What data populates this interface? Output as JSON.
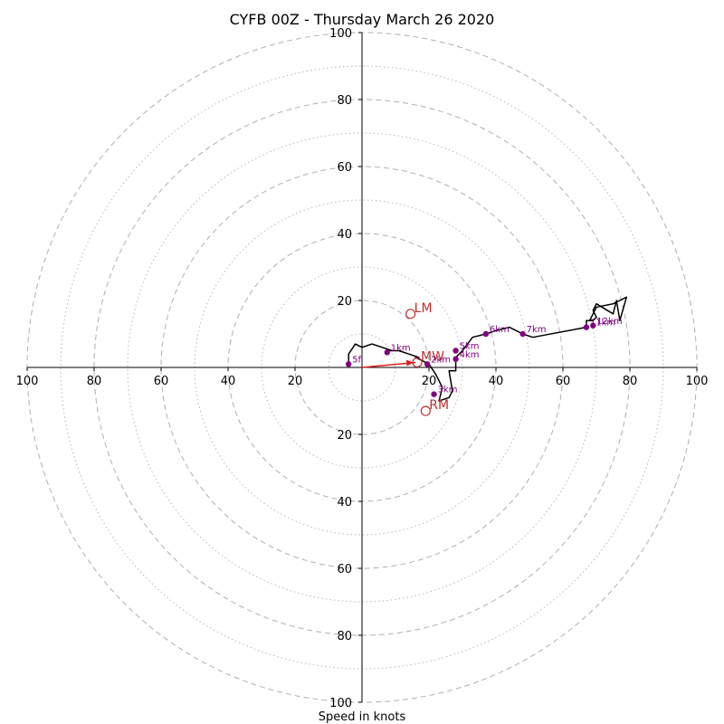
{
  "chart_data": {
    "type": "scatter",
    "title": "CYFB 00Z - Thursday March 26 2020",
    "xlabel": "Speed in knots",
    "ylabel": "",
    "xlim": [
      -100,
      100
    ],
    "ylim": [
      -100,
      100
    ],
    "ring_major": [
      20,
      40,
      60,
      80,
      100
    ],
    "ring_minor": [
      10,
      30,
      50,
      70,
      90
    ],
    "x_ticks": [
      -100,
      -80,
      -60,
      -40,
      -20,
      20,
      40,
      60,
      80,
      100
    ],
    "x_tick_labels": [
      "100",
      "80",
      "60",
      "40",
      "20",
      "20",
      "40",
      "60",
      "80",
      "100"
    ],
    "y_ticks": [
      100,
      80,
      60,
      40,
      20,
      -20,
      -40,
      -60,
      -80,
      -100
    ],
    "y_tick_labels": [
      "100",
      "80",
      "60",
      "40",
      "20",
      "20",
      "40",
      "60",
      "80",
      "100"
    ],
    "grid": true,
    "trace": [
      [
        -4,
        1
      ],
      [
        -4,
        4
      ],
      [
        -2,
        7
      ],
      [
        0,
        6
      ],
      [
        3,
        7
      ],
      [
        6,
        6
      ],
      [
        9,
        5
      ],
      [
        8,
        5
      ],
      [
        11,
        5
      ],
      [
        14,
        4
      ],
      [
        17,
        3
      ],
      [
        16,
        3
      ],
      [
        18,
        2
      ],
      [
        20,
        1
      ],
      [
        22,
        -2
      ],
      [
        24,
        -6
      ],
      [
        23,
        -10
      ],
      [
        26,
        -9
      ],
      [
        27,
        -7
      ],
      [
        26,
        -1
      ],
      [
        28,
        -1
      ],
      [
        28,
        3
      ],
      [
        30,
        5
      ],
      [
        33,
        9
      ],
      [
        37,
        10
      ],
      [
        40,
        11
      ],
      [
        44,
        12
      ],
      [
        48,
        10
      ],
      [
        51,
        9
      ],
      [
        67,
        12
      ],
      [
        67,
        14
      ],
      [
        69,
        14
      ],
      [
        70,
        15
      ],
      [
        69,
        17
      ],
      [
        70,
        19
      ],
      [
        75,
        16
      ],
      [
        76,
        20
      ],
      [
        77,
        14
      ],
      [
        79,
        21
      ],
      [
        77,
        20
      ],
      [
        75,
        19
      ],
      [
        70,
        18
      ],
      [
        68,
        14
      ]
    ],
    "height_markers": [
      {
        "label": "5f",
        "x": -4,
        "y": 1
      },
      {
        "label": "1km",
        "x": 7.5,
        "y": 4.5
      },
      {
        "label": "2km",
        "x": 19.5,
        "y": 1
      },
      {
        "label": "3km",
        "x": 21.5,
        "y": -8
      },
      {
        "label": "4km",
        "x": 28,
        "y": 2.5
      },
      {
        "label": "5km",
        "x": 28,
        "y": 5
      },
      {
        "label": "6km",
        "x": 37,
        "y": 10
      },
      {
        "label": "7km",
        "x": 48,
        "y": 10
      },
      {
        "label": "11km",
        "x": 67,
        "y": 12
      },
      {
        "label": "12km",
        "x": 69,
        "y": 12.5
      }
    ],
    "motion_markers": [
      {
        "label": "LM",
        "x": 14.5,
        "y": 16
      },
      {
        "label": "MW",
        "x": 16.5,
        "y": 1.5
      },
      {
        "label": "RM",
        "x": 19,
        "y": -13
      }
    ],
    "shear_vector": {
      "from": [
        0,
        0
      ],
      "to": [
        16,
        1.5
      ]
    },
    "colors": {
      "trace": "#000000",
      "marker": "#800080",
      "motion": "#c03030",
      "shear": "#e02020",
      "grid": "#b0b0b0",
      "axes": "#000000"
    }
  }
}
